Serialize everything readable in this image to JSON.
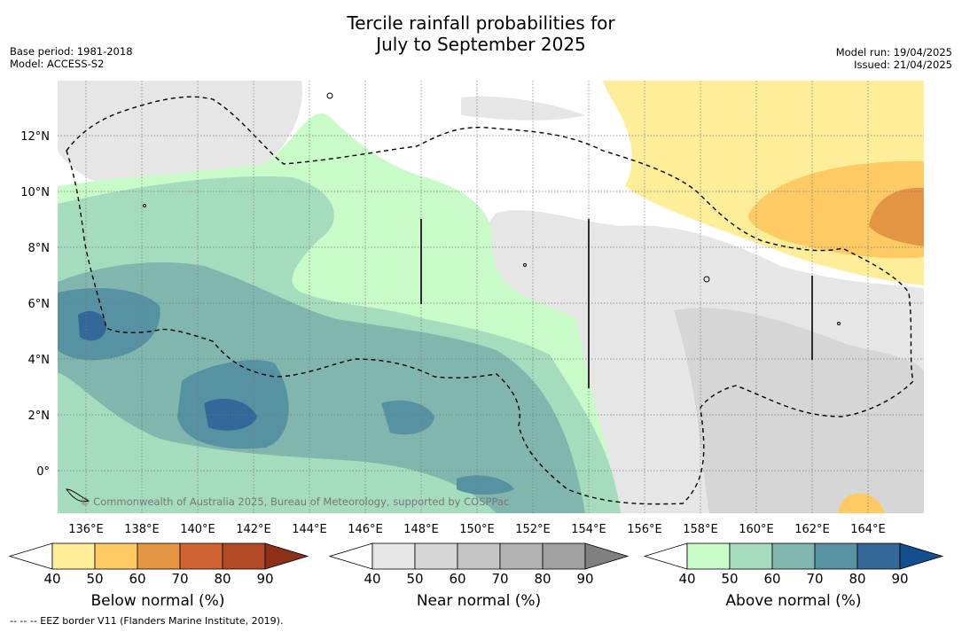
{
  "title_line1": "Tercile rainfall probabilities for",
  "title_line2": "July to September 2025",
  "base_period": "Base period: 1981-2018",
  "model": "Model: ACCESS-S2",
  "model_run": "Model run: 19/04/2025",
  "issued": "Issued: 21/04/2025",
  "copyright": "© Commonwealth of Australia 2025, Bureau of Meteorology, supported by COSPPac",
  "lon_labels": [
    "136°E",
    "138°E",
    "140°E",
    "142°E",
    "144°E",
    "146°E",
    "148°E",
    "150°E",
    "152°E",
    "154°E",
    "156°E",
    "158°E",
    "160°E",
    "162°E",
    "164°E"
  ],
  "lat_labels": [
    "12°N",
    "10°N",
    "8°N",
    "6°N",
    "4°N",
    "2°N",
    "0°"
  ],
  "colorbars": [
    {
      "name": "Below normal (%)",
      "ticks": [
        "40",
        "50",
        "60",
        "70",
        "80",
        "90"
      ],
      "colors": [
        "#ffffff",
        "#ffee99",
        "#fdca63",
        "#e39544",
        "#cf6432",
        "#b24a26",
        "#8c3018"
      ]
    },
    {
      "name": "Near normal (%)",
      "ticks": [
        "40",
        "50",
        "60",
        "70",
        "80",
        "90"
      ],
      "colors": [
        "#ffffff",
        "#e6e6e6",
        "#d6d6d6",
        "#c5c5c5",
        "#b3b3b3",
        "#a0a0a0",
        "#808080"
      ]
    },
    {
      "name": "Above normal (%)",
      "ticks": [
        "40",
        "50",
        "60",
        "70",
        "80",
        "90"
      ],
      "colors": [
        "#ffffff",
        "#c8fbc8",
        "#a6dcbe",
        "#80b6ad",
        "#5792a3",
        "#336899",
        "#134f8c"
      ]
    }
  ],
  "footer": "--  --  -- EEZ border V11 (Flanders Marine Institute, 2019)."
}
